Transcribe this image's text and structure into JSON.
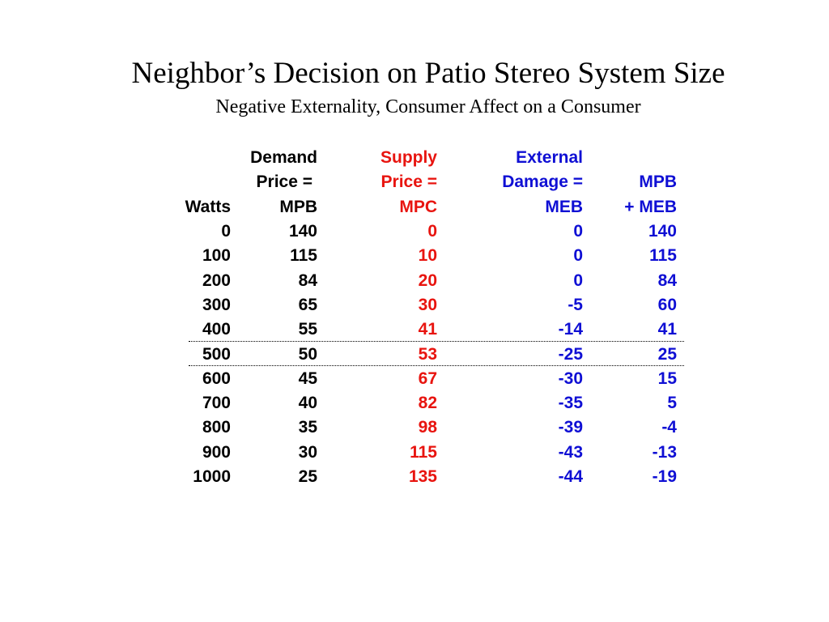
{
  "title": "Neighbor’s Decision on Patio Stereo System Size",
  "subtitle": "Negative Externality, Consumer Affect on a Consumer",
  "headers": {
    "watts": [
      "",
      "",
      "Watts"
    ],
    "demand": [
      "Demand",
      "Price =",
      "MPB"
    ],
    "supply": [
      "Supply",
      "Price =",
      "MPC"
    ],
    "external": [
      "External",
      "Damage =",
      "MEB"
    ],
    "social": [
      "",
      "MPB",
      "+ MEB"
    ]
  },
  "colors": {
    "supply": "#e8140f",
    "external": "#0f0fd4",
    "text": "#000000"
  },
  "rows": [
    {
      "watts": "0",
      "mpb": "140",
      "mpc": "0",
      "meb": "0",
      "smb": "140"
    },
    {
      "watts": "100",
      "mpb": "115",
      "mpc": "10",
      "meb": "0",
      "smb": "115"
    },
    {
      "watts": "200",
      "mpb": "84",
      "mpc": "20",
      "meb": "0",
      "smb": "84"
    },
    {
      "watts": "300",
      "mpb": "65",
      "mpc": "30",
      "meb": "-5",
      "smb": "60"
    },
    {
      "watts": "400",
      "mpb": "55",
      "mpc": "41",
      "meb": "-14",
      "smb": "41"
    },
    {
      "watts": "500",
      "mpb": "50",
      "mpc": "53",
      "meb": "-25",
      "smb": "25"
    },
    {
      "watts": "600",
      "mpb": "45",
      "mpc": "67",
      "meb": "-30",
      "smb": "15"
    },
    {
      "watts": "700",
      "mpb": "40",
      "mpc": "82",
      "meb": "-35",
      "smb": "5"
    },
    {
      "watts": "800",
      "mpb": "35",
      "mpc": "98",
      "meb": "-39",
      "smb": "-4"
    },
    {
      "watts": "900",
      "mpb": "30",
      "mpc": "115",
      "meb": "-43",
      "smb": "-13"
    },
    {
      "watts": "1000",
      "mpb": "25",
      "mpc": "135",
      "meb": "-44",
      "smb": "-19"
    }
  ]
}
